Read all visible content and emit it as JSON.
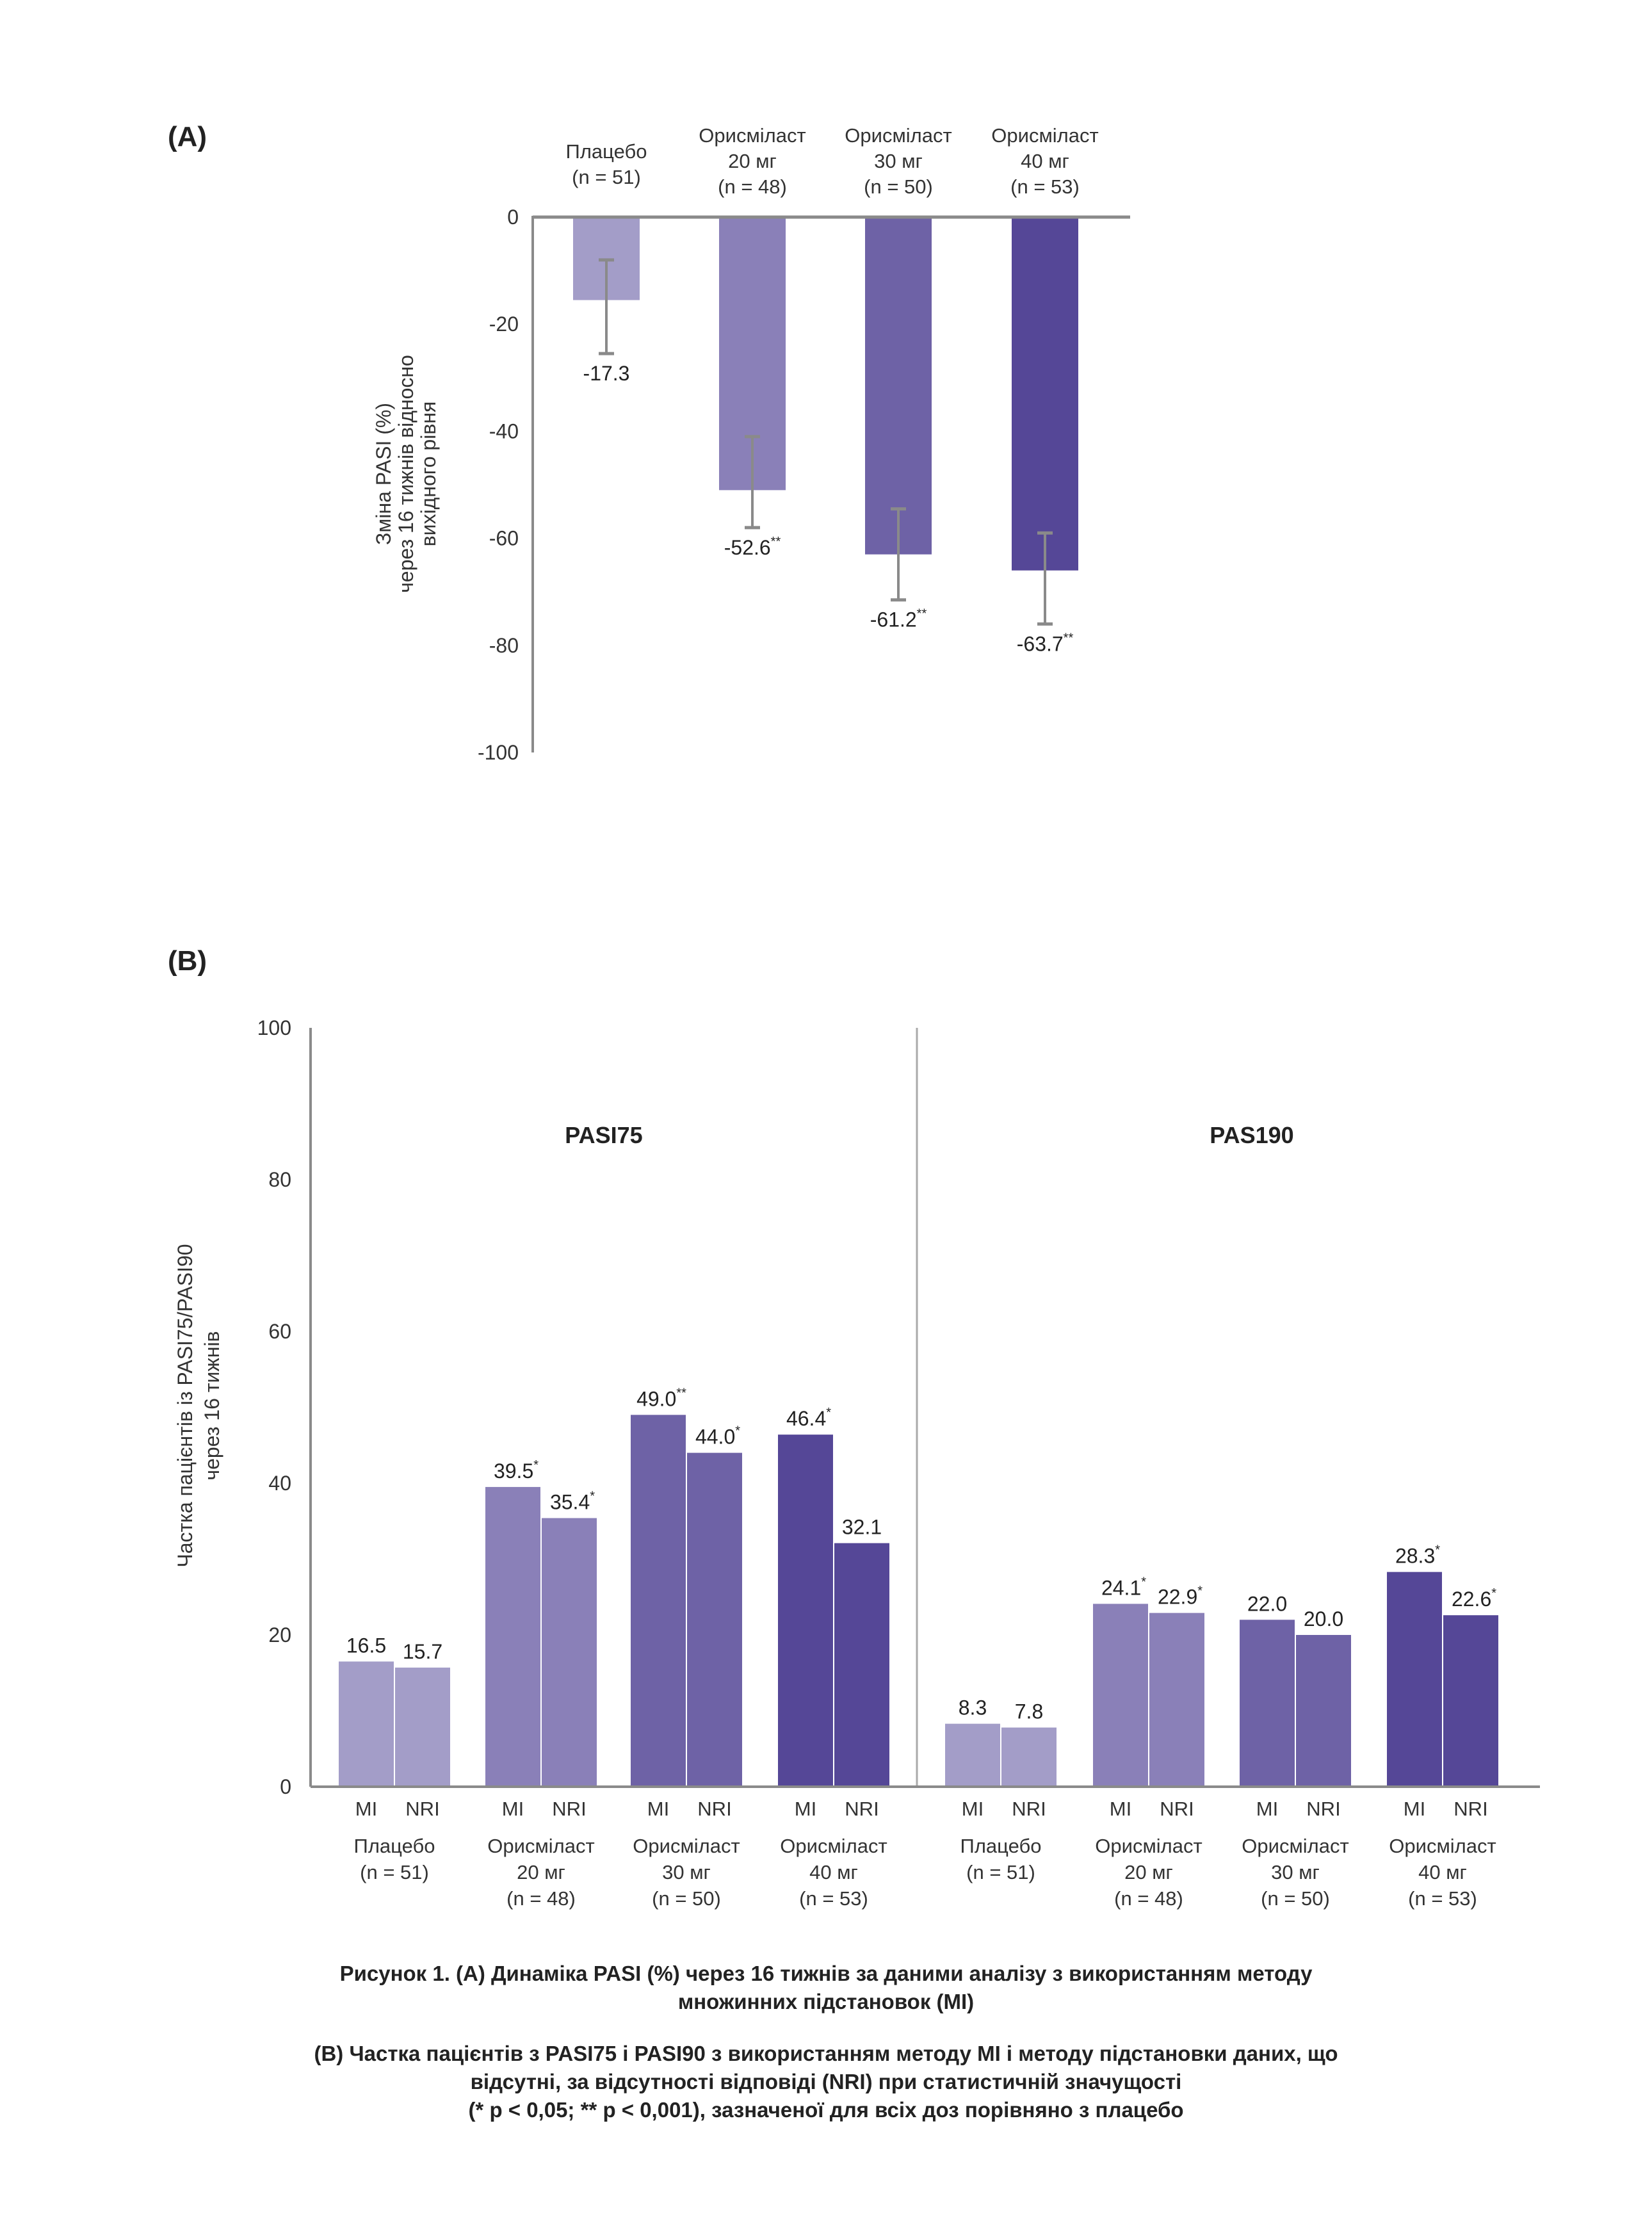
{
  "caption": {
    "line_a1": "Рисунок 1. (A) Динаміка PASI (%) через 16 тижнів за даними аналізу з використанням методу",
    "line_a2": "множинних підстановок (MI)",
    "line_b1": "(B) Частка пацієнтів з PASI75 і PASI90 з використанням методу MI і методу підстановки даних, що",
    "line_b2": "відсутні, за відсутності відповіді (NRI) при статистичній значущості",
    "line_b3": "(* p < 0,05; ** p < 0,001), зазначеної для всіх доз порівняно з плацебо"
  },
  "colors": {
    "placebo": "#a39dc8",
    "d20": "#8a80b8",
    "d30": "#6e62a6",
    "d40": "#554797",
    "axis": "#8a8a8a",
    "error_bar": "#8a8a8a"
  },
  "chart_data": [
    {
      "id": "A",
      "panel_label": "(A)",
      "type": "bar",
      "title": "",
      "ylabel_lines": [
        "Зміна PASI (%)",
        "через 16 тижнів відносно",
        "вихідного рівня"
      ],
      "xlabel": "",
      "ylim": [
        -100,
        0
      ],
      "yticks": [
        0,
        -20,
        -40,
        -60,
        -80,
        -100
      ],
      "grid": false,
      "categories": [
        {
          "lines": [
            "Плацебо",
            "(n = 51)"
          ],
          "color_key": "placebo"
        },
        {
          "lines": [
            "Орисміласт",
            "20 мг",
            "(n = 48)"
          ],
          "color_key": "d20"
        },
        {
          "lines": [
            "Орисміласт",
            "30 мг",
            "(n = 50)"
          ],
          "color_key": "d30"
        },
        {
          "lines": [
            "Орисміласт",
            "40 мг",
            "(n = 53)"
          ],
          "color_key": "d40"
        }
      ],
      "values": [
        -17.3,
        -52.6,
        -61.2,
        -63.7
      ],
      "drawn_values": [
        -15.5,
        -51,
        -63,
        -66
      ],
      "error_bars": [
        [
          -8,
          -25.5
        ],
        [
          -41,
          -58
        ],
        [
          -54.5,
          -71.5
        ],
        [
          -59,
          -76
        ]
      ],
      "labels": [
        "-17.3",
        "-52.6",
        "-61.2",
        "-63.7"
      ],
      "significance": [
        "",
        "**",
        "**",
        "**"
      ]
    },
    {
      "id": "B",
      "panel_label": "(B)",
      "type": "bar",
      "title": "",
      "ylabel_lines": [
        "Частка пацієнтів із PASI75/PASI90",
        "через 16 тижнів"
      ],
      "xlabel": "",
      "ylim": [
        0,
        100
      ],
      "yticks": [
        0,
        20,
        40,
        60,
        80,
        100
      ],
      "grid": false,
      "series_sublabels": [
        "MI",
        "NRI"
      ],
      "groups": [
        {
          "name": "PASI75",
          "categories": [
            {
              "lines": [
                "Плацебо",
                "(n = 51)"
              ],
              "color_key": "placebo",
              "MI": 16.5,
              "NRI": 15.7,
              "MI_sig": "",
              "NRI_sig": ""
            },
            {
              "lines": [
                "Орисміласт",
                "20 мг",
                "(n = 48)"
              ],
              "color_key": "d20",
              "MI": 39.5,
              "NRI": 35.4,
              "MI_sig": "*",
              "NRI_sig": "*"
            },
            {
              "lines": [
                "Орисміласт",
                "30 мг",
                "(n = 50)"
              ],
              "color_key": "d30",
              "MI": 49.0,
              "NRI": 44.0,
              "MI_sig": "**",
              "NRI_sig": "*"
            },
            {
              "lines": [
                "Орисміласт",
                "40 мг",
                "(n = 53)"
              ],
              "color_key": "d40",
              "MI": 46.4,
              "NRI": 32.1,
              "MI_sig": "*",
              "NRI_sig": ""
            }
          ]
        },
        {
          "name": "PAS190",
          "categories": [
            {
              "lines": [
                "Плацебо",
                "(n = 51)"
              ],
              "color_key": "placebo",
              "MI": 8.3,
              "NRI": 7.8,
              "MI_sig": "",
              "NRI_sig": ""
            },
            {
              "lines": [
                "Орисміласт",
                "20 мг",
                "(n = 48)"
              ],
              "color_key": "d20",
              "MI": 24.1,
              "NRI": 22.9,
              "MI_sig": "*",
              "NRI_sig": "*"
            },
            {
              "lines": [
                "Орисміласт",
                "30 мг",
                "(n = 50)"
              ],
              "color_key": "d30",
              "MI": 22.0,
              "NRI": 20.0,
              "MI_sig": "",
              "NRI_sig": ""
            },
            {
              "lines": [
                "Орисміласт",
                "40 мг",
                "(n = 53)"
              ],
              "color_key": "d40",
              "MI": 28.3,
              "NRI": 22.6,
              "MI_sig": "*",
              "NRI_sig": "*"
            }
          ]
        }
      ],
      "value_labels": {
        "PASI75": [
          [
            "16.5",
            "15.7"
          ],
          [
            "39.5",
            "35.4"
          ],
          [
            "49.0",
            "44.0"
          ],
          [
            "46.4",
            "32.1"
          ]
        ],
        "PAS190": [
          [
            "8.3",
            "7.8"
          ],
          [
            "24.1",
            "22.9"
          ],
          [
            "22.0",
            "20.0"
          ],
          [
            "28.3",
            "22.6"
          ]
        ]
      }
    }
  ]
}
